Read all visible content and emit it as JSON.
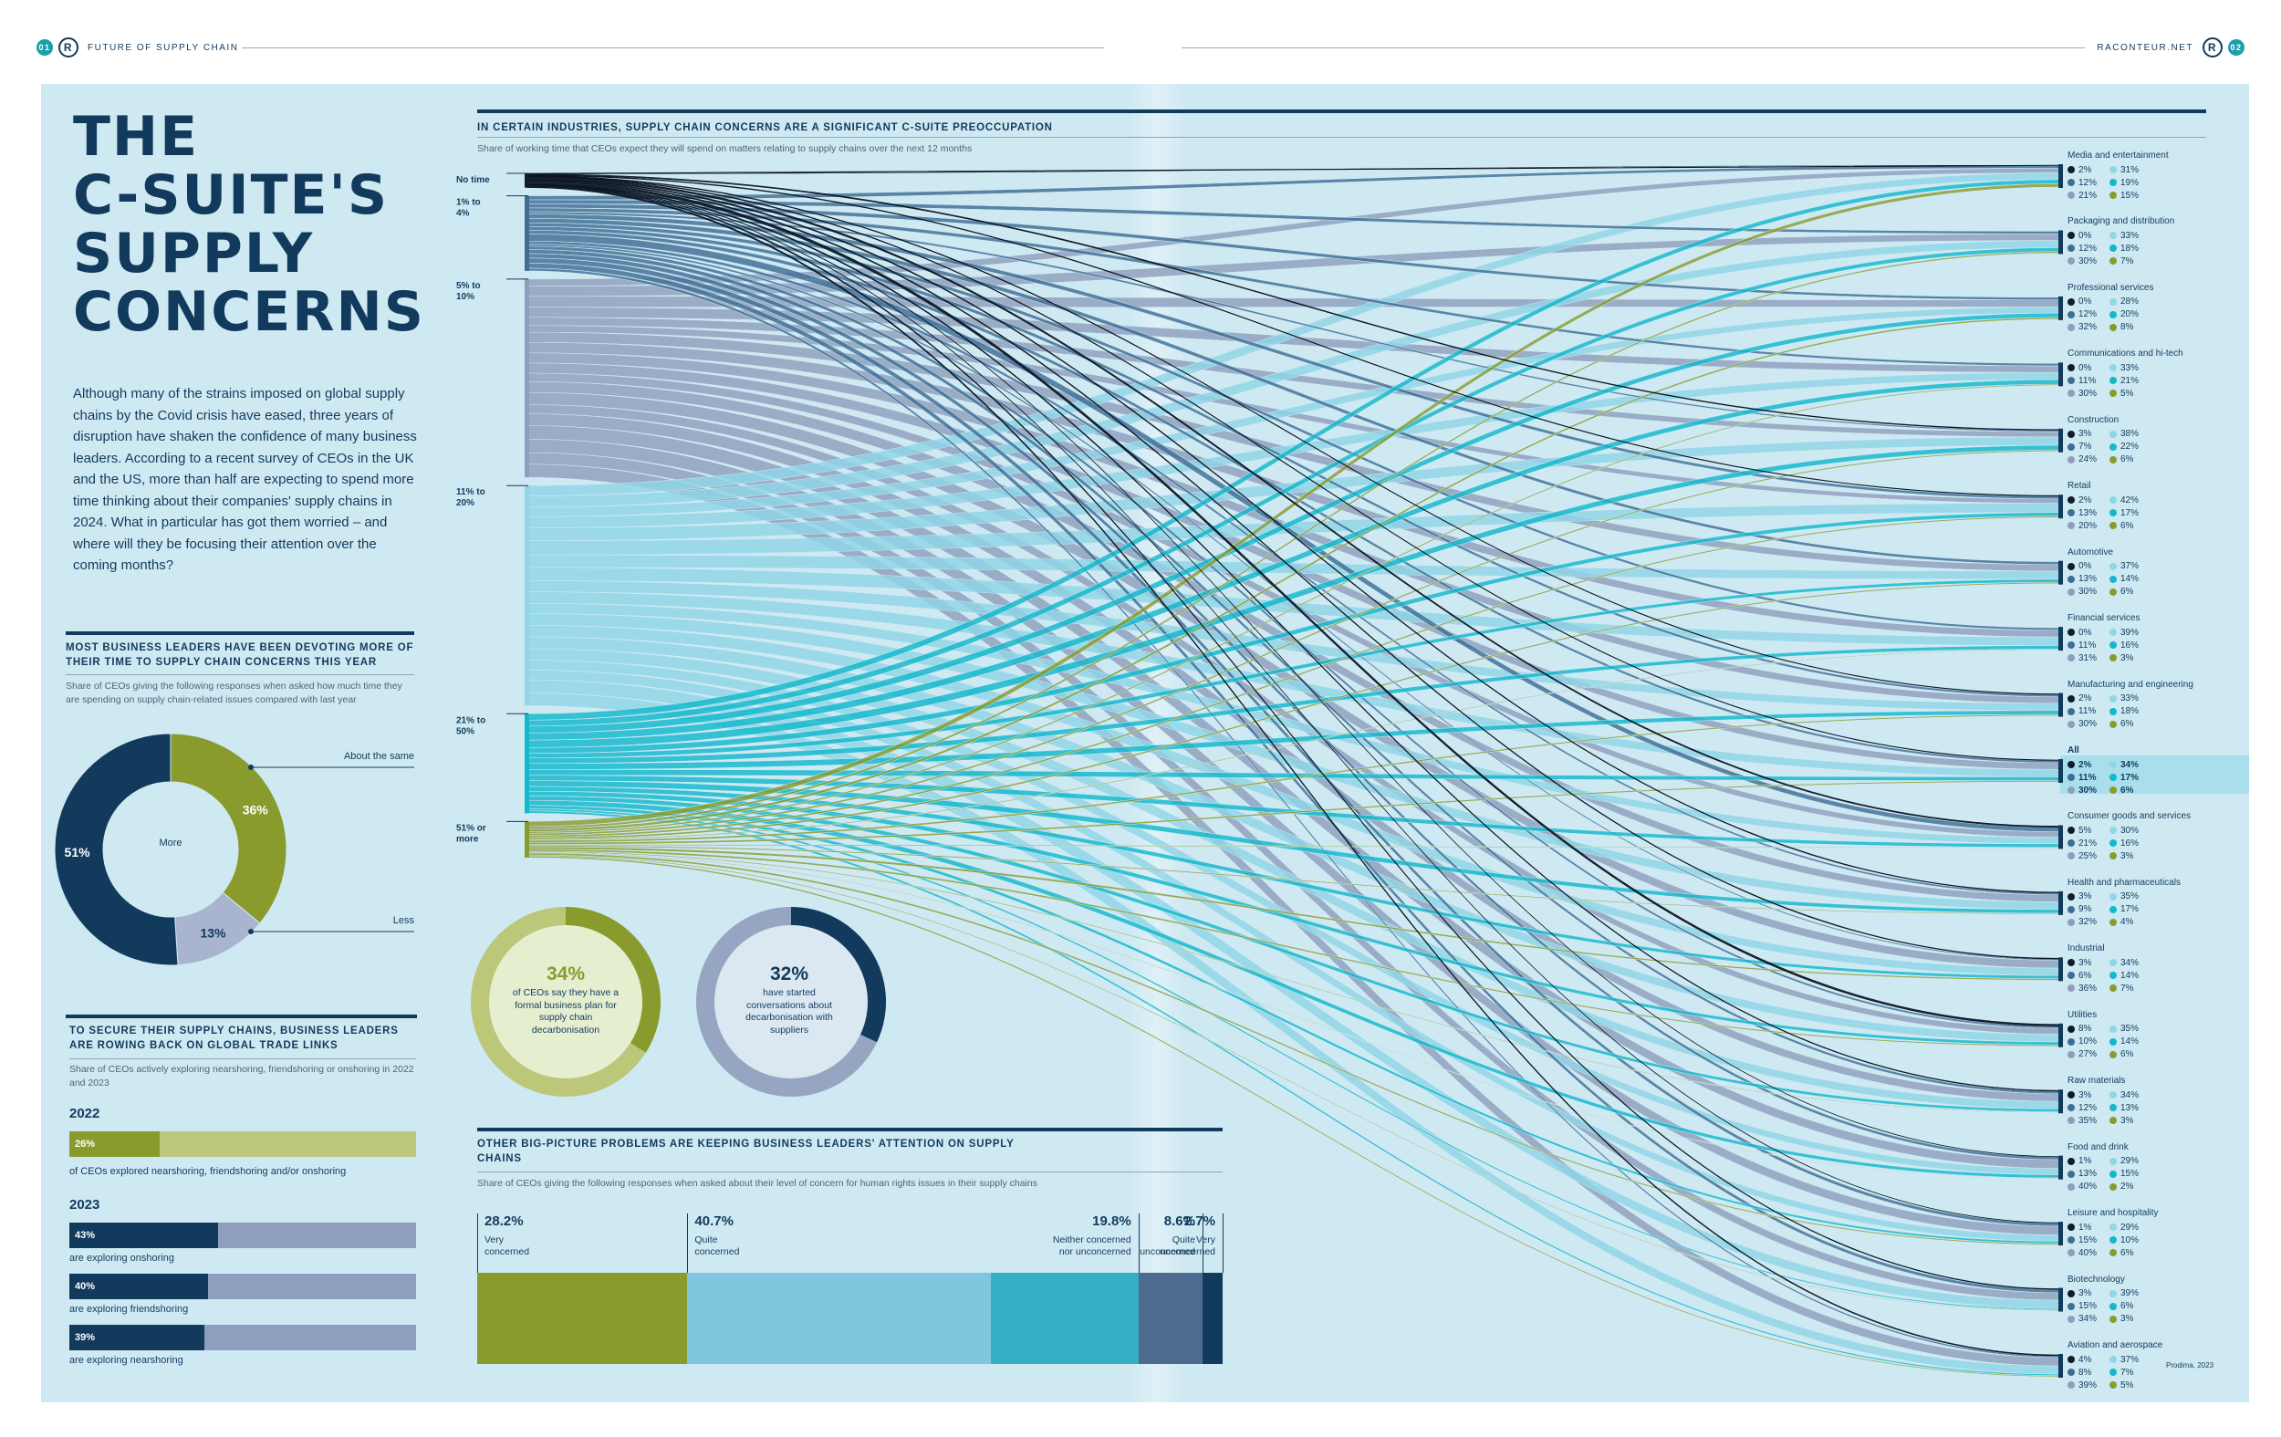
{
  "header": {
    "left_page": "01",
    "left_section": "FUTURE OF SUPPLY CHAIN",
    "right_site": "RACONTEUR.NET",
    "right_page": "02",
    "logo_letter": "R"
  },
  "title_lines": [
    "THE",
    "C-SUITE'S",
    "SUPPLY",
    "CONCERNS"
  ],
  "intro": "Although many of the strains imposed on global supply chains by the Covid crisis have eased, three years of disruption have shaken the confidence of many business leaders. According to a recent survey of CEOs in the UK and the US, more than half are expecting to spend more time thinking about their companies' supply chains in 2024. What in particular has got them worried – and where will they be focusing their attention over the coming months?",
  "donut_section": {
    "title": "MOST BUSINESS LEADERS HAVE BEEN DEVOTING MORE OF THEIR TIME TO SUPPLY CHAIN CONCERNS THIS YEAR",
    "subtitle": "Share of CEOs giving the following responses when asked how much time they are spending on supply chain-related issues compared with last year",
    "center_label": "More",
    "labels": {
      "same": "About the same",
      "less": "Less"
    }
  },
  "trade_section": {
    "title": "TO SECURE THEIR SUPPLY CHAINS, BUSINESS LEADERS ARE ROWING BACK ON GLOBAL TRADE LINKS",
    "subtitle": "Share of CEOs actively exploring nearshoring, friendshoring or onshoring in 2022 and 2023",
    "year1": "2022",
    "year2": "2023",
    "bars_2022": [
      {
        "pct": "26%",
        "value": 26,
        "label": "of CEOs explored nearshoring, friendshoring and/or onshoring"
      }
    ],
    "bars_2023": [
      {
        "pct": "43%",
        "value": 43,
        "label": "are exploring onshoring"
      },
      {
        "pct": "40%",
        "value": 40,
        "label": "are exploring friendshoring"
      },
      {
        "pct": "39%",
        "value": 39,
        "label": "are exploring nearshoring"
      }
    ]
  },
  "sankey_section": {
    "title": "IN CERTAIN INDUSTRIES, SUPPLY CHAIN CONCERNS ARE A SIGNIFICANT C-SUITE PREOCCUPATION",
    "subtitle": "Share of working time that CEOs expect they will spend on matters relating to supply chains over the next 12 months",
    "source": "Prodima, 2023"
  },
  "decarb": {
    "left": {
      "pct": "34%",
      "value": 34,
      "text": "of CEOs say they have a formal business plan for supply chain decarbonisation"
    },
    "right": {
      "pct": "32%",
      "value": 32,
      "text": "have started conversations about decarbonisation with suppliers"
    }
  },
  "human_rights": {
    "title": "OTHER BIG-PICTURE PROBLEMS ARE KEEPING BUSINESS LEADERS' ATTENTION ON SUPPLY CHAINS",
    "subtitle": "Share of CEOs giving the following responses when asked about their level of concern for human rights issues in their supply chains"
  },
  "colors": {
    "no_time": "#111c2a",
    "pct1_4": "#3e6e95",
    "pct5_10": "#8d9fbc",
    "pct11_20": "#8fd6e6",
    "pct21_50": "#12b8cc",
    "pct51": "#8a9b2e",
    "navy": "#123a5c",
    "panel": "#cfe9f3"
  },
  "chart_data": [
    {
      "type": "pie",
      "variant": "donut",
      "categories": [
        "More",
        "About the same",
        "Less"
      ],
      "values": [
        51,
        36,
        13
      ],
      "colors": [
        "#123a5c",
        "#8a9b2e",
        "#a9b4cf"
      ],
      "value_labels": [
        "51%",
        "36%",
        "13%"
      ]
    },
    {
      "type": "bar",
      "variant": "100% stacked horizontal",
      "categories": [
        "Very concerned",
        "Quite concerned",
        "Neither concerned nor unconcerned",
        "Quite unconcerned",
        "Very unconcerned"
      ],
      "values": [
        28.2,
        40.7,
        19.8,
        8.6,
        2.7
      ],
      "value_labels": [
        "28.2%",
        "40.7%",
        "19.8%",
        "8.6%",
        "2.7%"
      ],
      "colors": [
        "#8a9b2e",
        "#7fc7dc",
        "#36aec4",
        "#4e6b8f",
        "#123a5c"
      ]
    },
    {
      "type": "sankey",
      "sources": [
        "No time",
        "1% to 4%",
        "5% to 10%",
        "11% to 20%",
        "21% to 50%",
        "51% or more"
      ],
      "industries": [
        {
          "name": "Media and entertainment",
          "values": [
            2,
            12,
            21,
            31,
            19,
            15
          ]
        },
        {
          "name": "Packaging and distribution",
          "values": [
            0,
            12,
            30,
            33,
            18,
            7
          ]
        },
        {
          "name": "Professional services",
          "values": [
            0,
            12,
            32,
            28,
            20,
            8
          ]
        },
        {
          "name": "Communications and hi-tech",
          "values": [
            0,
            11,
            30,
            33,
            21,
            5
          ]
        },
        {
          "name": "Construction",
          "values": [
            3,
            7,
            24,
            38,
            22,
            6
          ]
        },
        {
          "name": "Retail",
          "values": [
            2,
            13,
            20,
            42,
            17,
            6
          ]
        },
        {
          "name": "Automotive",
          "values": [
            0,
            13,
            30,
            37,
            14,
            6
          ]
        },
        {
          "name": "Financial services",
          "values": [
            0,
            11,
            31,
            39,
            16,
            3
          ]
        },
        {
          "name": "Manufacturing and engineering",
          "values": [
            2,
            11,
            30,
            33,
            18,
            6
          ]
        },
        {
          "name": "All",
          "values": [
            2,
            11,
            30,
            34,
            17,
            6
          ]
        },
        {
          "name": "Consumer goods and services",
          "values": [
            5,
            21,
            25,
            30,
            16,
            3
          ]
        },
        {
          "name": "Health and pharmaceuticals",
          "values": [
            3,
            9,
            32,
            35,
            17,
            4
          ]
        },
        {
          "name": "Industrial",
          "values": [
            3,
            6,
            36,
            34,
            14,
            7
          ]
        },
        {
          "name": "Utilities",
          "values": [
            8,
            10,
            27,
            35,
            14,
            6
          ]
        },
        {
          "name": "Raw materials",
          "values": [
            3,
            12,
            35,
            34,
            13,
            3
          ]
        },
        {
          "name": "Food and drink",
          "values": [
            1,
            13,
            40,
            29,
            15,
            2
          ]
        },
        {
          "name": "Leisure and hospitality",
          "values": [
            1,
            15,
            40,
            29,
            10,
            6
          ]
        },
        {
          "name": "Biotechnology",
          "values": [
            3,
            15,
            34,
            39,
            6,
            3
          ]
        },
        {
          "name": "Aviation and aerospace",
          "values": [
            4,
            8,
            39,
            37,
            7,
            5
          ]
        }
      ]
    }
  ]
}
